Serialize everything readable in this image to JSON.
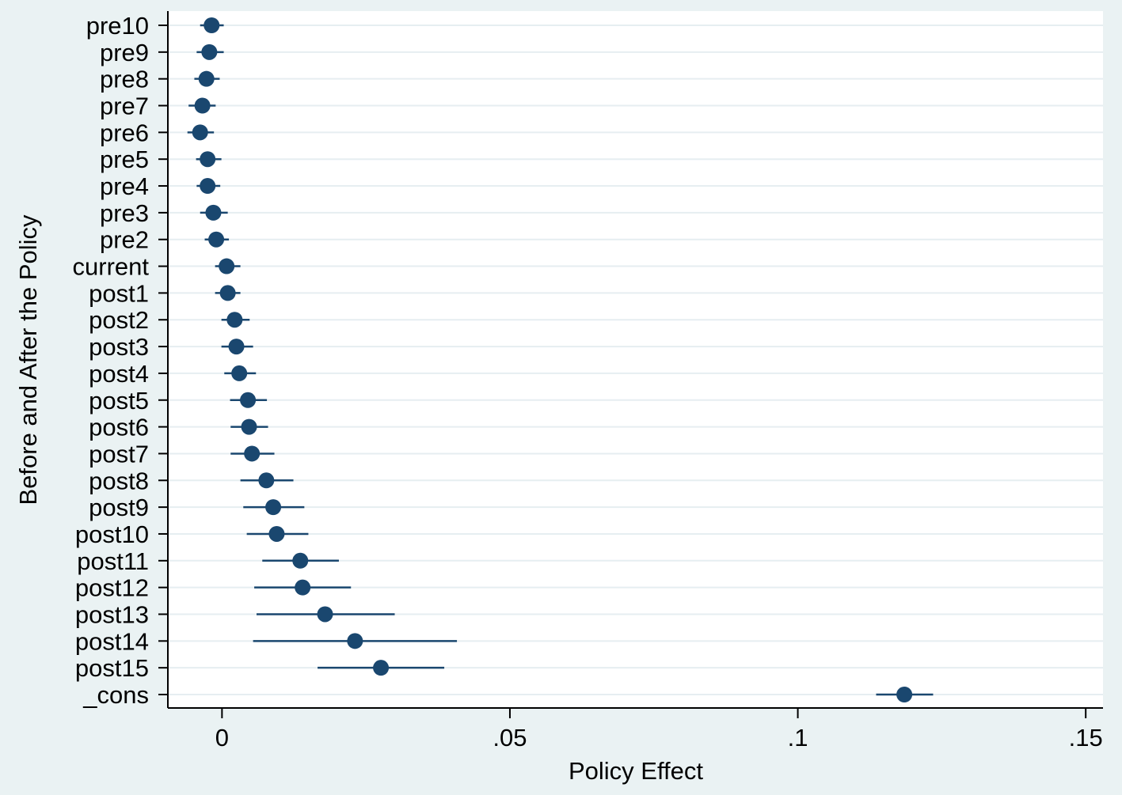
{
  "chart_data": {
    "type": "scatter",
    "subtype": "coefficient-plot",
    "xlabel": "Policy Effect",
    "ylabel": "Before and After the Policy",
    "xlim": [
      -0.0094,
      0.153
    ],
    "xticks": [
      0,
      0.05,
      0.1,
      0.15
    ],
    "xtick_labels": [
      "0",
      ".05",
      ".1",
      ".15"
    ],
    "grid": "horizontal",
    "marker_color": "#1a476f",
    "categories": [
      "pre10",
      "pre9",
      "pre8",
      "pre7",
      "pre6",
      "pre5",
      "pre4",
      "pre3",
      "pre2",
      "current",
      "post1",
      "post2",
      "post3",
      "post4",
      "post5",
      "post6",
      "post7",
      "post8",
      "post9",
      "post10",
      "post11",
      "post12",
      "post13",
      "post14",
      "post15",
      "_cons"
    ],
    "estimates": [
      -0.0018,
      -0.0022,
      -0.0027,
      -0.0034,
      -0.0038,
      -0.0025,
      -0.0025,
      -0.0015,
      -0.001,
      0.0008,
      0.001,
      0.0022,
      0.0025,
      0.003,
      0.0045,
      0.0047,
      0.0052,
      0.0077,
      0.0089,
      0.0095,
      0.0136,
      0.014,
      0.0179,
      0.0231,
      0.0276,
      0.1185
    ],
    "ci_low": [
      -0.0038,
      -0.0044,
      -0.0048,
      -0.0058,
      -0.006,
      -0.0045,
      -0.0044,
      -0.0038,
      -0.003,
      -0.0012,
      -0.0012,
      -0.0001,
      -0.0001,
      0.0004,
      0.0014,
      0.0015,
      0.0015,
      0.0032,
      0.0037,
      0.0043,
      0.007,
      0.0056,
      0.006,
      0.0054,
      0.0166,
      0.1136
    ],
    "ci_high": [
      0.0003,
      0.0003,
      -0.0004,
      -0.0011,
      -0.0014,
      -0.0001,
      -0.0003,
      0.001,
      0.0012,
      0.0032,
      0.0032,
      0.0048,
      0.0054,
      0.0059,
      0.0078,
      0.008,
      0.0091,
      0.0124,
      0.0143,
      0.015,
      0.0203,
      0.0224,
      0.03,
      0.0408,
      0.0386,
      0.1235
    ]
  }
}
